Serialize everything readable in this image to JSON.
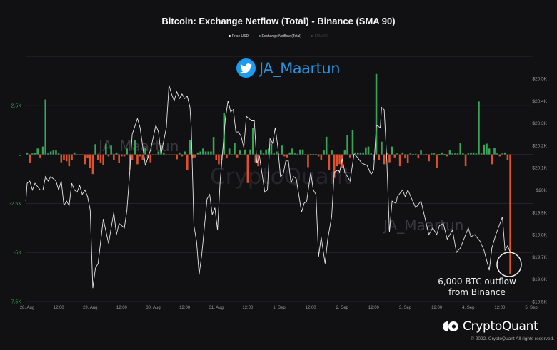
{
  "chart_data": {
    "type": "bar+line",
    "title": "Bitcoin: Exchange Netflow (Total) - Binance (SMA 90)",
    "legend": {
      "placement": "top",
      "items": [
        {
          "name": "Price USD",
          "color": "#ffffff",
          "active": true
        },
        {
          "name": "Exchange Netflow (Total)",
          "color": "#3aa35a",
          "active": true
        },
        {
          "name": "SMA(90)",
          "color": "#555555",
          "active": false
        }
      ]
    },
    "x_ticks": [
      "28. Aug",
      "12:00",
      "29. Aug",
      "12:00",
      "30. Aug",
      "12:00",
      "31. Aug",
      "12:00",
      "1. Sep",
      "12:00",
      "2. Sep",
      "12:00",
      "3. Sep",
      "12:00",
      "4. Sep",
      "12:00",
      "5. Sep"
    ],
    "y_left": {
      "ticks": [
        "2.5K",
        "0",
        "-2.5K",
        "-5K",
        "-7.5K"
      ],
      "tick_values": [
        2500,
        0,
        -2500,
        -5000,
        -7500
      ],
      "range": [
        -7500,
        5000
      ],
      "color": "#3f9a52"
    },
    "y_right": {
      "ticks": [
        "$20.5K",
        "$20.4K",
        "$20.3K",
        "$20.2K",
        "$20.1K",
        "$20K",
        "$19.9K",
        "$19.8K",
        "$19.7K",
        "$19.6K",
        "$19.5K"
      ],
      "range": [
        19500,
        20500
      ]
    },
    "grid": true,
    "colors": {
      "positive": "#3aa35a",
      "negative": "#e0512b",
      "price": "#e6e6e6"
    },
    "netflow": {
      "name": "Exchange Netflow (Total)",
      "unit": "BTC (thousands)",
      "resolution": "1h",
      "values": [
        0.1,
        -0.43,
        0.05,
        0.08,
        0.3,
        -0.2,
        0.4,
        2.8,
        0.05,
        0.15,
        0.2,
        0.2,
        0.05,
        -0.4,
        -0.3,
        -0.35,
        -0.6,
        -0.3,
        0.1,
        -0.05,
        0,
        -0.05,
        -0.5,
        -0.2,
        -0.7,
        -1.0,
        0.52,
        -0.3,
        -0.45,
        -0.55,
        0.55,
        -0.1,
        0.45,
        -0.3,
        0.1,
        -0.45,
        -0.1,
        -0.1,
        0.3,
        -0.77,
        -0.3,
        0.73,
        -0.5,
        -0.1,
        -0.3,
        0.35,
        -0.2,
        -0.4,
        -0.05,
        -0.05,
        0.15,
        0.45,
        0.1,
        -0.05,
        -0.05,
        0,
        -0.05,
        -0.25,
        0.1,
        -0.1,
        0.15,
        -0.8,
        0.75,
        -0.2,
        -0.15,
        0.1,
        0.15,
        0.3,
        0.15,
        0.15,
        0.15,
        0.89,
        -0.3,
        -0.5,
        -0.3,
        2.1,
        -0.2,
        0.3,
        -0.05,
        0.6,
        -0.15,
        0.2,
        -0.05,
        0.25,
        -1.46,
        0.25,
        1.34,
        -0.4,
        -0.6,
        0.2,
        0.05,
        0.25,
        0.3,
        0.55,
        0.05,
        0.15,
        -0.05,
        0.45,
        -0.1,
        -0.15,
        0.1,
        0.3,
        0.05,
        0.03,
        0.25,
        0.25,
        -0.05,
        -0.65,
        0.02,
        0.02,
        0.02,
        -0.1,
        -0.3,
        0.2,
        0.9,
        -0.79,
        0.2,
        -1.2,
        -0.6,
        -0.5,
        -0.7,
        0.2,
        0.99,
        -0.15,
        1.25,
        0.1,
        0.1,
        0.1,
        0.1,
        0.36,
        0.4,
        0.05,
        -0.3,
        4.1,
        -0.3,
        0.65,
        -0.5,
        0.1,
        -0.4,
        0.4,
        -0.15,
        0.05,
        -0.6,
        0.1,
        -0.2,
        -0.45,
        0.05,
        0.02,
        0.03,
        -0.2,
        0.2,
        -0.05,
        0.02,
        -0.35,
        0.05,
        0.05,
        -0.7,
        0.02,
        0.1,
        0.02,
        -0.1,
        0.2,
        0.05,
        0.05,
        0.05,
        0.6,
        0.05,
        -0.6,
        0.05,
        0.1,
        0.1,
        0.05,
        2.7,
        0.05,
        0.5,
        0.55,
        0.3,
        -0.5,
        0.35,
        0.05,
        -0.1,
        0.05,
        0.1,
        -0.3,
        -6.1
      ]
    },
    "price": {
      "name": "Price USD",
      "unit": "USD (thousands)",
      "points": [
        [
          "08-27 23:30",
          19.95
        ],
        [
          "08-28 00:00",
          20.03
        ],
        [
          "08-28 01:00",
          20.04
        ],
        [
          "08-28 02:00",
          20.0
        ],
        [
          "08-28 03:00",
          20.03
        ],
        [
          "08-28 05:00",
          20.0
        ],
        [
          "08-28 06:00",
          20.0
        ],
        [
          "08-28 07:00",
          20.06
        ],
        [
          "08-28 08:00",
          20.04
        ],
        [
          "08-28 09:00",
          20.06
        ],
        [
          "08-28 11:00",
          20.04
        ],
        [
          "08-28 12:00",
          20.0
        ],
        [
          "08-28 13:00",
          20.04
        ],
        [
          "08-28 14:00",
          19.93
        ],
        [
          "08-28 15:00",
          19.95
        ],
        [
          "08-28 16:00",
          19.93
        ],
        [
          "08-28 17:00",
          20.03
        ],
        [
          "08-28 18:00",
          20.0
        ],
        [
          "08-28 19:00",
          19.99
        ],
        [
          "08-28 20:00",
          20.02
        ],
        [
          "08-28 21:00",
          19.98
        ],
        [
          "08-28 22:00",
          20.0
        ],
        [
          "08-28 23:00",
          19.97
        ],
        [
          "08-29 00:00",
          19.91
        ],
        [
          "08-29 01:00",
          19.56
        ],
        [
          "08-29 02:00",
          19.65
        ],
        [
          "08-29 03:00",
          19.67
        ],
        [
          "08-29 05:00",
          19.87
        ],
        [
          "08-29 07:00",
          19.76
        ],
        [
          "08-29 09:00",
          19.9
        ],
        [
          "08-29 10:00",
          19.8
        ],
        [
          "08-29 11:00",
          19.85
        ],
        [
          "08-29 13:00",
          19.83
        ],
        [
          "08-29 14:00",
          19.91
        ],
        [
          "08-29 15:00",
          20.07
        ],
        [
          "08-29 16:00",
          20.25
        ],
        [
          "08-29 18:00",
          20.32
        ],
        [
          "08-29 19:00",
          20.28
        ],
        [
          "08-29 21:00",
          20.11
        ],
        [
          "08-29 23:00",
          20.18
        ],
        [
          "08-30 01:00",
          20.29
        ],
        [
          "08-30 02:00",
          20.26
        ],
        [
          "08-30 03:00",
          20.16
        ],
        [
          "08-30 05:00",
          20.28
        ],
        [
          "08-30 06:00",
          20.47
        ],
        [
          "08-30 07:00",
          20.43
        ],
        [
          "08-30 08:00",
          20.4
        ],
        [
          "08-30 09:00",
          20.44
        ],
        [
          "08-30 10:00",
          20.41
        ],
        [
          "08-30 11:00",
          20.43
        ],
        [
          "08-30 12:00",
          20.41
        ],
        [
          "08-30 13:00",
          20.42
        ],
        [
          "08-30 14:00",
          20.37
        ],
        [
          "08-30 14:30",
          20.28
        ],
        [
          "08-30 15:30",
          19.84
        ],
        [
          "08-30 16:30",
          19.77
        ],
        [
          "08-30 17:30",
          19.62
        ],
        [
          "08-30 18:30",
          19.71
        ],
        [
          "08-30 20:30",
          19.96
        ],
        [
          "08-30 21:30",
          19.98
        ],
        [
          "08-30 22:30",
          19.89
        ],
        [
          "08-30 23:30",
          19.92
        ],
        [
          "08-31 00:30",
          19.82
        ],
        [
          "08-31 01:30",
          20.04
        ],
        [
          "08-31 03:30",
          20.32
        ],
        [
          "08-31 04:30",
          20.4
        ],
        [
          "08-31 05:30",
          20.35
        ],
        [
          "08-31 06:30",
          20.36
        ],
        [
          "08-31 07:30",
          20.26
        ],
        [
          "08-31 08:30",
          20.26
        ],
        [
          "08-31 09:30",
          20.24
        ],
        [
          "08-31 10:30",
          20.19
        ],
        [
          "08-31 11:30",
          20.33
        ],
        [
          "08-31 12:30",
          20.32
        ],
        [
          "08-31 13:30",
          20.31
        ],
        [
          "08-31 14:30",
          20.31
        ],
        [
          "08-31 15:30",
          20.12
        ],
        [
          "08-31 16:30",
          20.15
        ],
        [
          "08-31 18:30",
          19.99
        ],
        [
          "08-31 19:30",
          20.0
        ],
        [
          "08-31 20:30",
          20.23
        ],
        [
          "08-31 21:30",
          20.21
        ],
        [
          "08-31 22:30",
          20.28
        ],
        [
          "08-31 23:30",
          20.19
        ],
        [
          "09-01 00:30",
          20.06
        ],
        [
          "09-01 01:30",
          20.07
        ],
        [
          "09-01 02:30",
          20.13
        ],
        [
          "09-01 03:30",
          20.13
        ],
        [
          "09-01 04:30",
          20.03
        ],
        [
          "09-01 05:30",
          20.06
        ],
        [
          "09-01 06:30",
          20.05
        ],
        [
          "09-01 08:30",
          19.9
        ],
        [
          "09-01 09:30",
          19.94
        ],
        [
          "09-01 10:30",
          19.95
        ],
        [
          "09-01 12:00",
          20.08
        ],
        [
          "09-01 13:00",
          20.0
        ],
        [
          "09-01 14:00",
          19.98
        ],
        [
          "09-01 15:00",
          19.7
        ],
        [
          "09-01 16:00",
          19.79
        ],
        [
          "09-01 17:30",
          19.67
        ],
        [
          "09-01 18:30",
          19.78
        ],
        [
          "09-01 20:00",
          19.88
        ],
        [
          "09-01 21:00",
          20.08
        ],
        [
          "09-01 22:30",
          20.09
        ],
        [
          "09-01 23:00",
          20.08
        ],
        [
          "09-02 00:00",
          20.14
        ],
        [
          "09-02 01:00",
          20.08
        ],
        [
          "09-02 03:00",
          20.04
        ],
        [
          "09-02 04:30",
          20.16
        ],
        [
          "09-02 05:30",
          20.15
        ],
        [
          "09-02 07:30",
          20.12
        ],
        [
          "09-02 09:30",
          20.11
        ],
        [
          "09-02 11:00",
          20.07
        ],
        [
          "09-02 12:00",
          20.09
        ],
        [
          "09-02 13:00",
          20.29
        ],
        [
          "09-02 14:30",
          20.28
        ],
        [
          "09-02 15:00",
          20.37
        ],
        [
          "09-02 16:00",
          20.36
        ],
        [
          "09-02 17:00",
          20.13
        ],
        [
          "09-02 18:00",
          19.81
        ],
        [
          "09-02 19:00",
          19.95
        ],
        [
          "09-02 20:30",
          19.94
        ],
        [
          "09-02 21:00",
          19.97
        ],
        [
          "09-02 23:00",
          20.0
        ],
        [
          "09-03 00:00",
          19.97
        ],
        [
          "09-03 01:00",
          20.0
        ],
        [
          "09-03 02:30",
          19.96
        ],
        [
          "09-03 04:00",
          19.92
        ],
        [
          "09-03 06:00",
          19.95
        ],
        [
          "09-03 09:00",
          19.8
        ],
        [
          "09-03 10:30",
          19.83
        ],
        [
          "09-03 12:00",
          19.8
        ],
        [
          "09-03 13:00",
          19.84
        ],
        [
          "09-03 14:30",
          19.85
        ],
        [
          "09-03 16:00",
          19.78
        ],
        [
          "09-03 18:00",
          19.82
        ],
        [
          "09-03 19:30",
          19.72
        ],
        [
          "09-03 21:00",
          19.74
        ],
        [
          "09-03 22:00",
          19.77
        ],
        [
          "09-04 00:00",
          19.83
        ],
        [
          "09-04 01:00",
          19.79
        ],
        [
          "09-04 02:30",
          19.8
        ],
        [
          "09-04 04:30",
          19.77
        ],
        [
          "09-04 06:00",
          19.73
        ],
        [
          "09-04 08:00",
          19.64
        ],
        [
          "09-04 09:00",
          19.74
        ],
        [
          "09-04 10:30",
          19.8
        ],
        [
          "09-04 13:00",
          19.88
        ],
        [
          "09-04 14:00",
          19.73
        ],
        [
          "09-04 15:00",
          19.75
        ],
        [
          "09-04 16:00",
          19.72
        ]
      ]
    },
    "annotation": {
      "line1": "6,000 BTC outflow",
      "line2": "from Binance"
    }
  },
  "watermarks": {
    "handle": "JA_Maartun",
    "brand": "CryptoQuant"
  },
  "footer": {
    "brand": "CryptoQuant",
    "copyright": "© 2022. CryptoQuant All rights reserved."
  }
}
